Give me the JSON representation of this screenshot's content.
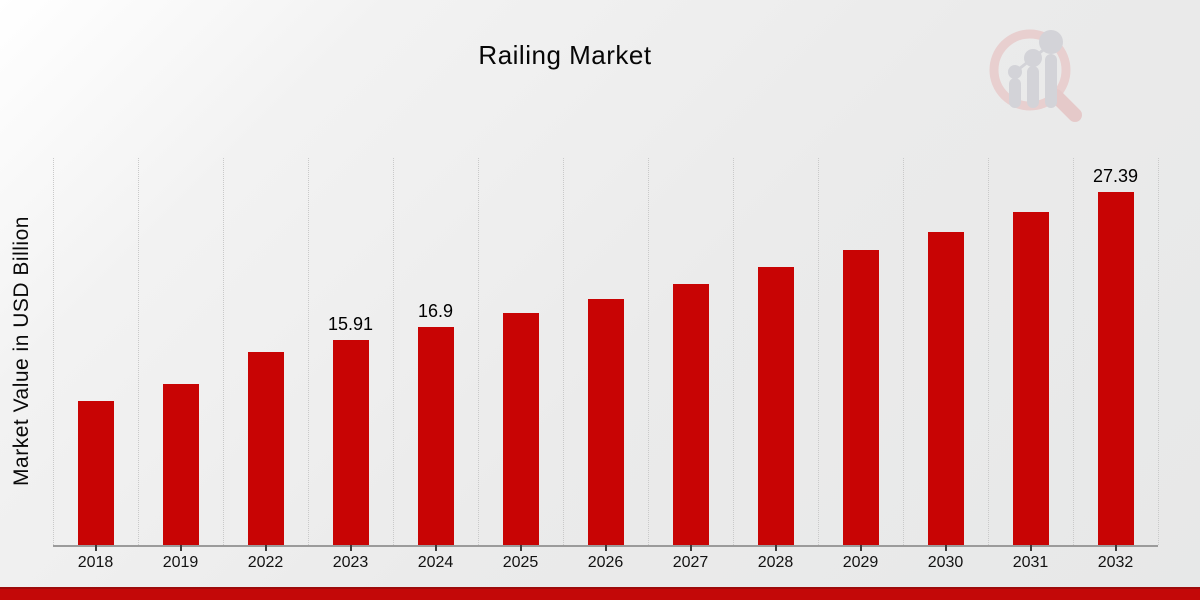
{
  "header": {
    "title": "Railing Market"
  },
  "axes": {
    "y_label": "Market Value in USD Billion"
  },
  "watermark": {
    "icon": "magnifier-bar-chart-logo"
  },
  "colors": {
    "bar": "#c80404",
    "gridline": "#c9c9c9",
    "axis_line": "#9b9b9b",
    "footer_accent": "#c30808",
    "watermark_ring": "#e8cfcf",
    "watermark_bars": "#d3d3d8"
  },
  "chart_data": {
    "type": "bar",
    "title": "Railing Market",
    "xlabel": "",
    "ylabel": "Market Value in USD Billion",
    "categories": [
      "2018",
      "2019",
      "2022",
      "2023",
      "2024",
      "2025",
      "2026",
      "2027",
      "2028",
      "2029",
      "2030",
      "2031",
      "2032"
    ],
    "values": [
      11.2,
      12.5,
      15.0,
      15.91,
      16.9,
      17.95,
      19.07,
      20.26,
      21.52,
      22.86,
      24.28,
      25.79,
      27.39
    ],
    "data_labels": [
      "",
      "",
      "",
      "15.91",
      "16.9",
      "",
      "",
      "",
      "",
      "",
      "",
      "",
      "27.39"
    ],
    "ylim": [
      0,
      30
    ],
    "grid": "vertical-dotted",
    "legend": false,
    "bar_color": "#c80404"
  }
}
